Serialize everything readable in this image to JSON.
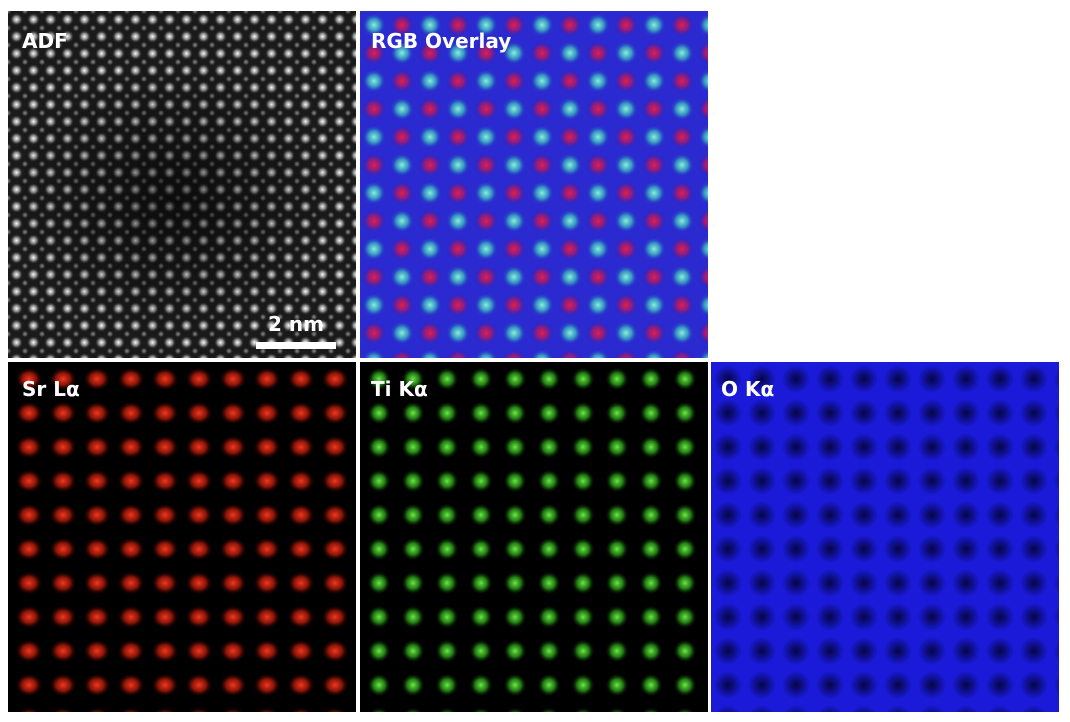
{
  "panels": [
    {
      "label": "ADF",
      "scale_bar": "2 nm"
    },
    {
      "label": "RGB Overlay"
    },
    {
      "label": "Sr Lα"
    },
    {
      "label": "Ti Kα"
    },
    {
      "label": "O Kα"
    }
  ]
}
